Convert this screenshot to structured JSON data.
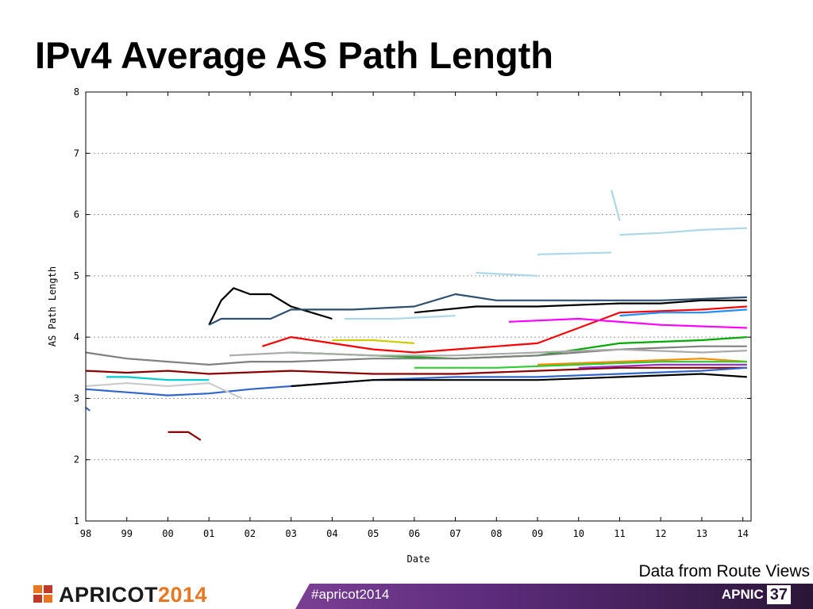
{
  "slide": {
    "title": "IPv4 Average AS Path Length",
    "source_note": "Data from Route Views"
  },
  "footer": {
    "brand_name": "APRICOT",
    "brand_year": "2014",
    "hashtag": "#apricot2014",
    "org_name": "APNIC",
    "org_number": "37",
    "brand_colors": [
      "#e87722",
      "#c0392b",
      "#7a3f93"
    ]
  },
  "chart_data": {
    "type": "line",
    "title": "",
    "xlabel": "Date",
    "ylabel": "AS Path Length",
    "xlim": [
      1998,
      2014.2
    ],
    "ylim": [
      1,
      8
    ],
    "y_ticks": [
      "1",
      "2",
      "3",
      "4",
      "5",
      "6",
      "7",
      "8"
    ],
    "x_ticks": [
      {
        "value": 1998,
        "label": "98"
      },
      {
        "value": 1999,
        "label": "99"
      },
      {
        "value": 2000,
        "label": "00"
      },
      {
        "value": 2001,
        "label": "01"
      },
      {
        "value": 2002,
        "label": "02"
      },
      {
        "value": 2003,
        "label": "03"
      },
      {
        "value": 2004,
        "label": "04"
      },
      {
        "value": 2005,
        "label": "05"
      },
      {
        "value": 2006,
        "label": "06"
      },
      {
        "value": 2007,
        "label": "07"
      },
      {
        "value": 2008,
        "label": "08"
      },
      {
        "value": 2009,
        "label": "09"
      },
      {
        "value": 2010,
        "label": "10"
      },
      {
        "value": 2011,
        "label": "11"
      },
      {
        "value": 2012,
        "label": "12"
      },
      {
        "value": 2013,
        "label": "13"
      },
      {
        "value": 2014,
        "label": "14"
      }
    ],
    "grid": true,
    "legend": "none",
    "series": [
      {
        "color": "#000000",
        "x": [
          2001.0,
          2001.3,
          2001.6,
          2002.0,
          2002.5,
          2003.0,
          2003.5,
          2004.0
        ],
        "y": [
          4.2,
          4.6,
          4.8,
          4.7,
          4.7,
          4.5,
          4.4,
          4.3
        ]
      },
      {
        "color": "#000000",
        "x": [
          2006.0,
          2007.5,
          2009.0,
          2011.0,
          2012.0,
          2013.0,
          2014.1
        ],
        "y": [
          4.4,
          4.5,
          4.5,
          4.55,
          4.55,
          4.6,
          4.6
        ]
      },
      {
        "color": "#2f4f6f",
        "x": [
          2001.0,
          2001.3,
          2002.5,
          2003.0,
          2004.5,
          2006.0,
          2007.0,
          2008.0,
          2010.0,
          2012.0,
          2014.1
        ],
        "y": [
          4.2,
          4.3,
          4.3,
          4.45,
          4.45,
          4.5,
          4.7,
          4.6,
          4.6,
          4.6,
          4.65
        ]
      },
      {
        "color": "#add8e6",
        "x": [
          2007.5,
          2009.0
        ],
        "y": [
          5.05,
          5.0
        ]
      },
      {
        "color": "#add8e6",
        "x": [
          2009.0,
          2010.8
        ],
        "y": [
          5.35,
          5.38
        ]
      },
      {
        "color": "#add8e6",
        "x": [
          2010.8,
          2011.0
        ],
        "y": [
          6.4,
          5.9
        ]
      },
      {
        "color": "#add8e6",
        "x": [
          2011.0,
          2012.0,
          2013.0,
          2014.1
        ],
        "y": [
          5.67,
          5.7,
          5.75,
          5.78
        ]
      },
      {
        "color": "#add8e6",
        "x": [
          2004.3,
          2005.5,
          2007.0
        ],
        "y": [
          4.3,
          4.3,
          4.35
        ]
      },
      {
        "color": "#ff0000",
        "x": [
          2002.3,
          2003.0,
          2004.0,
          2005.0,
          2006.0,
          2007.0,
          2009.0,
          2011.0,
          2013.0,
          2014.1
        ],
        "y": [
          3.85,
          4.0,
          3.9,
          3.8,
          3.75,
          3.8,
          3.9,
          4.4,
          4.45,
          4.5
        ]
      },
      {
        "color": "#cccc00",
        "x": [
          2004.0,
          2005.0,
          2006.0
        ],
        "y": [
          3.95,
          3.95,
          3.9
        ]
      },
      {
        "color": "#ff00ff",
        "x": [
          2008.3,
          2010.0,
          2012.0,
          2014.1
        ],
        "y": [
          4.25,
          4.3,
          4.2,
          4.15
        ]
      },
      {
        "color": "#00aa00",
        "x": [
          2003.0,
          2005.0,
          2007.0,
          2009.0,
          2011.0,
          2013.0,
          2014.1
        ],
        "y": [
          3.75,
          3.7,
          3.65,
          3.7,
          3.9,
          3.95,
          4.0
        ]
      },
      {
        "color": "#808080",
        "x": [
          1998.0,
          1999.0,
          2000.0,
          2001.0,
          2002.0,
          2003.0,
          2005.0,
          2007.0,
          2009.0,
          2011.0,
          2013.0,
          2014.1
        ],
        "y": [
          3.75,
          3.65,
          3.6,
          3.55,
          3.6,
          3.6,
          3.65,
          3.65,
          3.7,
          3.8,
          3.85,
          3.85
        ]
      },
      {
        "color": "#aaaaaa",
        "x": [
          2001.5,
          2003.0,
          2005.0,
          2007.0,
          2009.0,
          2011.0,
          2013.0,
          2014.1
        ],
        "y": [
          3.7,
          3.75,
          3.7,
          3.7,
          3.75,
          3.8,
          3.75,
          3.78
        ]
      },
      {
        "color": "#8b0000",
        "x": [
          1998.0,
          1999.0,
          2000.0,
          2001.0,
          2003.0,
          2005.0,
          2007.0,
          2009.0,
          2011.0,
          2013.0,
          2014.1
        ],
        "y": [
          3.45,
          3.42,
          3.45,
          3.4,
          3.45,
          3.4,
          3.4,
          3.45,
          3.5,
          3.5,
          3.5
        ]
      },
      {
        "color": "#8b0000",
        "x": [
          2000.0,
          2000.5,
          2000.8
        ],
        "y": [
          2.45,
          2.45,
          2.32
        ]
      },
      {
        "color": "#00cccc",
        "x": [
          1998.5,
          1999.0,
          2000.0,
          2001.0
        ],
        "y": [
          3.35,
          3.35,
          3.3,
          3.3
        ]
      },
      {
        "color": "#3366cc",
        "x": [
          1998.0,
          1999.0,
          2000.0,
          2001.0,
          2002.0,
          2003.0,
          2005.0,
          2007.0,
          2009.0,
          2011.0,
          2013.0,
          2014.1
        ],
        "y": [
          3.15,
          3.1,
          3.05,
          3.08,
          3.15,
          3.2,
          3.3,
          3.35,
          3.35,
          3.4,
          3.45,
          3.5
        ]
      },
      {
        "color": "#000000",
        "x": [
          2003.0,
          2005.0,
          2007.0,
          2009.0,
          2011.0,
          2013.0,
          2014.1
        ],
        "y": [
          3.2,
          3.3,
          3.3,
          3.3,
          3.35,
          3.4,
          3.35
        ]
      },
      {
        "color": "#ff8800",
        "x": [
          2009.0,
          2011.0,
          2013.0,
          2014.1
        ],
        "y": [
          3.55,
          3.6,
          3.65,
          3.6
        ]
      },
      {
        "color": "#9933cc",
        "x": [
          2010.0,
          2012.0,
          2014.1
        ],
        "y": [
          3.5,
          3.55,
          3.55
        ]
      },
      {
        "color": "#33cc33",
        "x": [
          2006.0,
          2008.0,
          2010.0,
          2012.0,
          2014.1
        ],
        "y": [
          3.5,
          3.5,
          3.55,
          3.6,
          3.6
        ]
      },
      {
        "color": "#1e90ff",
        "x": [
          2011.0,
          2012.0,
          2013.0,
          2014.1
        ],
        "y": [
          4.35,
          4.4,
          4.4,
          4.45
        ]
      },
      {
        "color": "#cccccc",
        "x": [
          1998.0,
          1999.0,
          2000.0,
          2001.0,
          2001.8
        ],
        "y": [
          3.2,
          3.25,
          3.2,
          3.25,
          3.0
        ]
      },
      {
        "color": "#3366cc",
        "x": [
          1998.0,
          1998.1
        ],
        "y": [
          2.85,
          2.8
        ]
      }
    ]
  }
}
